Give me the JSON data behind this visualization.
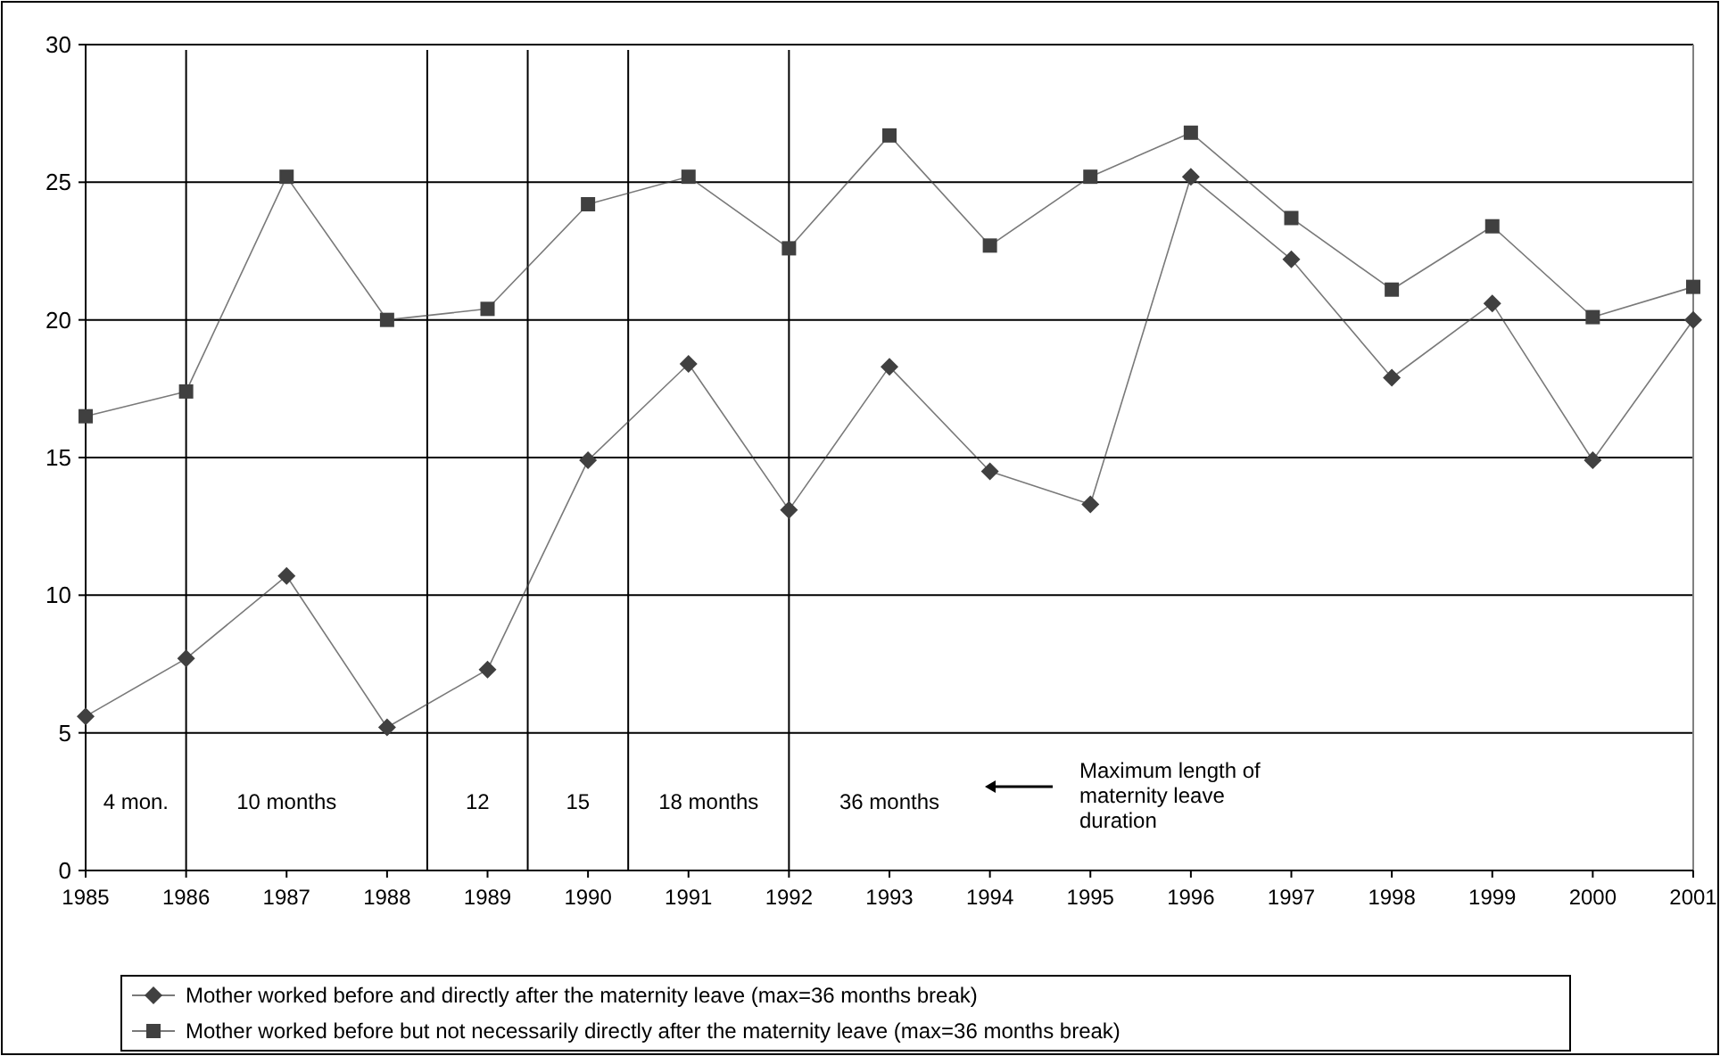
{
  "chart_data": {
    "type": "line",
    "x": [
      1985,
      1986,
      1987,
      1988,
      1989,
      1990,
      1991,
      1992,
      1993,
      1994,
      1995,
      1996,
      1997,
      1998,
      1999,
      2000,
      2001
    ],
    "xlim": [
      1985,
      2001
    ],
    "xticks": [
      1985,
      1986,
      1987,
      1988,
      1989,
      1990,
      1991,
      1992,
      1993,
      1994,
      1995,
      1996,
      1997,
      1998,
      1999,
      2000,
      2001
    ],
    "ylim": [
      0,
      30
    ],
    "yticks": [
      0,
      5,
      10,
      15,
      20,
      25,
      30
    ],
    "grid": "y",
    "legend": "bottom",
    "series": [
      {
        "name": "Mother worked before and directly after the maternity leave (max=36 months break)",
        "color": "#404040",
        "marker": "diamond",
        "values": [
          5.6,
          7.7,
          10.7,
          5.2,
          7.3,
          14.9,
          18.4,
          13.1,
          18.3,
          14.5,
          13.3,
          25.2,
          22.2,
          17.9,
          20.6,
          14.9,
          20.0
        ]
      },
      {
        "name": "Mother worked before but not necessarily directly after the maternity leave (max=36 months break)",
        "color": "#404040",
        "marker": "square",
        "values": [
          16.5,
          17.4,
          25.2,
          20.0,
          20.4,
          24.2,
          25.2,
          22.6,
          26.7,
          22.7,
          25.2,
          26.8,
          23.7,
          21.1,
          23.4,
          20.1,
          21.2
        ]
      }
    ],
    "ref_lines": [
      {
        "axis": "x",
        "value": 1986
      },
      {
        "axis": "x",
        "value": 1988.4
      },
      {
        "axis": "x",
        "value": 1989.4
      },
      {
        "axis": "x",
        "value": 1990.4
      },
      {
        "axis": "x",
        "value": 1992
      }
    ],
    "annotations": [
      "4 mon.",
      "10 months",
      "12",
      "15",
      "18 months",
      "36 months",
      "Maximum length of maternity leave duration"
    ]
  }
}
